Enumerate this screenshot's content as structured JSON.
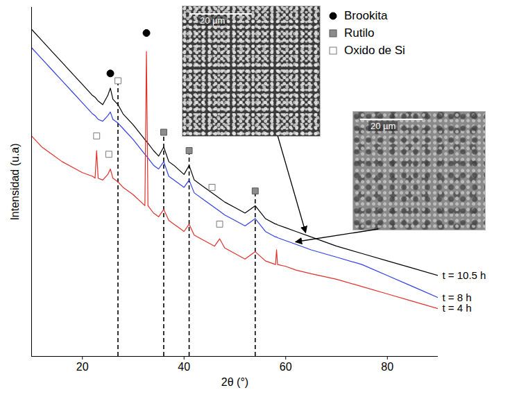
{
  "chart_data": {
    "type": "line",
    "x_label": "2θ (°)",
    "y_label": "Intensidad (u.a)",
    "xlim": [
      10,
      90
    ],
    "xticks": [
      20,
      40,
      60,
      80
    ],
    "ylim": [
      0,
      95
    ],
    "yticks": [],
    "tick_labels": "x",
    "grid": false,
    "legend": "top-right",
    "x": [
      10,
      12,
      14,
      16,
      18,
      20,
      22,
      22.5,
      22.8,
      23.1,
      24,
      25,
      25.5,
      26,
      27,
      28,
      30,
      32.3,
      32.6,
      32.9,
      34,
      35,
      36,
      37,
      38,
      40,
      41,
      42,
      44,
      46,
      47,
      48,
      50,
      52,
      54,
      56,
      58,
      58.2,
      58.4,
      60,
      62,
      65,
      70,
      75,
      80,
      85,
      90
    ],
    "series": [
      {
        "name": "t = 10.5 h",
        "color": "#000000",
        "values": [
          89,
          86,
          83,
          80,
          77,
          74,
          71,
          70.5,
          70,
          69.5,
          68.5,
          71,
          73,
          70,
          68.5,
          66,
          63,
          59,
          58.5,
          58,
          56,
          54.5,
          57,
          53,
          52,
          49.5,
          52,
          48,
          46,
          44,
          43,
          42,
          40.5,
          39,
          41,
          37.5,
          36,
          36,
          35.8,
          35,
          34,
          32.5,
          30,
          28,
          26,
          24,
          22
        ]
      },
      {
        "name": "t = 8 h",
        "color": "#2f3fe8",
        "values": [
          84,
          81,
          78,
          75,
          72,
          69,
          66,
          65.5,
          65,
          64.5,
          64,
          65.5,
          66.5,
          64.5,
          63.5,
          62,
          59,
          55,
          54.5,
          54,
          52,
          51,
          53,
          49,
          48,
          46,
          48,
          44.5,
          42.5,
          40.5,
          39.5,
          38.5,
          37,
          35.5,
          37.5,
          34,
          32.5,
          32.5,
          32.3,
          31.5,
          30.5,
          29,
          27,
          25,
          22,
          19,
          16
        ]
      },
      {
        "name": "t = 4 h",
        "color": "#e0302a",
        "values": [
          60,
          57,
          55,
          53,
          51.5,
          50,
          49,
          48.5,
          56,
          48.5,
          48,
          49.5,
          51,
          48.5,
          47.5,
          46,
          44,
          41,
          83,
          41,
          39,
          38,
          40,
          37,
          36,
          34,
          36,
          33,
          31.5,
          30,
          32,
          29.5,
          28,
          26.5,
          28.5,
          26,
          25,
          29,
          25,
          24.5,
          23.5,
          22.5,
          21,
          19,
          17,
          15,
          13
        ]
      }
    ],
    "phases": [
      {
        "name": "Brookita",
        "marker": "circle",
        "color": "#000000"
      },
      {
        "name": "Rutilo",
        "marker": "square",
        "color": "#8c8c8c"
      },
      {
        "name": "Oxido de Si",
        "marker": "square-open",
        "color": "#7a7a7a"
      }
    ],
    "markers": [
      {
        "phase": "Brookita",
        "x": 25.5,
        "y": 77
      },
      {
        "phase": "Brookita",
        "x": 32.6,
        "y": 88
      },
      {
        "phase": "Oxido de Si",
        "x": 27,
        "y": 75
      },
      {
        "phase": "Oxido de Si",
        "x": 22.8,
        "y": 60
      },
      {
        "phase": "Oxido de Si",
        "x": 25.2,
        "y": 55
      },
      {
        "phase": "Oxido de Si",
        "x": 45.5,
        "y": 46
      },
      {
        "phase": "Oxido de Si",
        "x": 47,
        "y": 36
      },
      {
        "phase": "Rutilo",
        "x": 36,
        "y": 61
      },
      {
        "phase": "Rutilo",
        "x": 41,
        "y": 56
      },
      {
        "phase": "Rutilo",
        "x": 54,
        "y": 45
      }
    ],
    "reference_lines": {
      "x": [
        27,
        36,
        41,
        54
      ],
      "line_style": "dashed"
    },
    "insets": [
      {
        "scale_bar": "20 µm",
        "points_to": {
          "series": "t = 10.5 h",
          "x": 64,
          "y": 33
        }
      },
      {
        "scale_bar": "20 µm",
        "points_to": {
          "series": "t = 8 h",
          "x": 62,
          "y": 30.5
        }
      }
    ]
  }
}
